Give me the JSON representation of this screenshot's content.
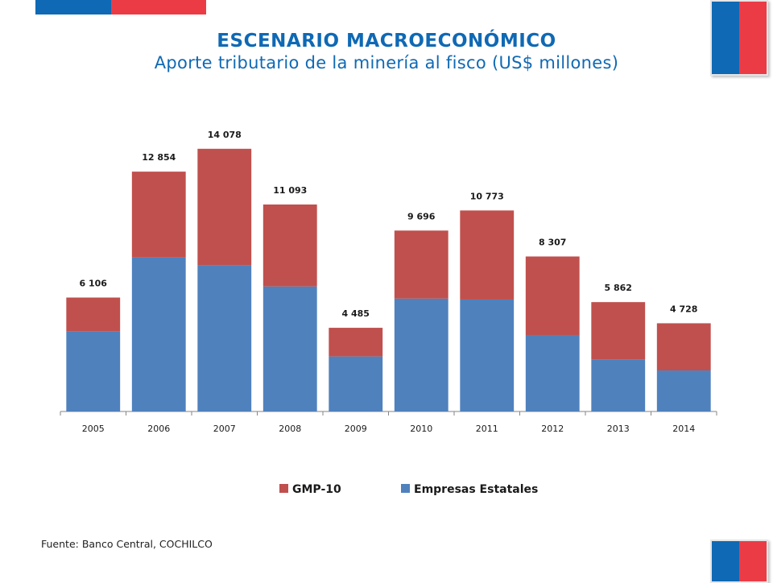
{
  "header": {
    "title": "ESCENARIO MACROECONÓMICO",
    "subtitle": "Aporte tributario de la minería al fisco (US$ millones)"
  },
  "colors": {
    "brand_blue": "#0f69b4",
    "brand_red": "#eb3c46",
    "series_gmp10": "#c0504d",
    "series_estatales": "#4f81bd"
  },
  "chart_data": {
    "type": "bar",
    "stacked": true,
    "categories": [
      "2005",
      "2006",
      "2007",
      "2008",
      "2009",
      "2010",
      "2011",
      "2012",
      "2013",
      "2014"
    ],
    "series": [
      {
        "name": "Empresas Estatales",
        "values": [
          4300,
          8250,
          7850,
          6700,
          2950,
          6050,
          6000,
          4100,
          2800,
          2200
        ]
      },
      {
        "name": "GMP-10",
        "values": [
          1806,
          4604,
          6228,
          4393,
          1535,
          3646,
          4773,
          4207,
          3062,
          2528
        ]
      }
    ],
    "totals": [
      "6 106",
      "12 854",
      "14 078",
      "11 093",
      "4 485",
      "9 696",
      "10 773",
      "8 307",
      "5 862",
      "4 728"
    ],
    "ylim": [
      0,
      14500
    ],
    "grid": false,
    "legend_position": "bottom",
    "legend_order": [
      "GMP-10",
      "Empresas Estatales"
    ]
  },
  "footer": {
    "source": "Fuente: Banco Central, COCHILCO"
  }
}
